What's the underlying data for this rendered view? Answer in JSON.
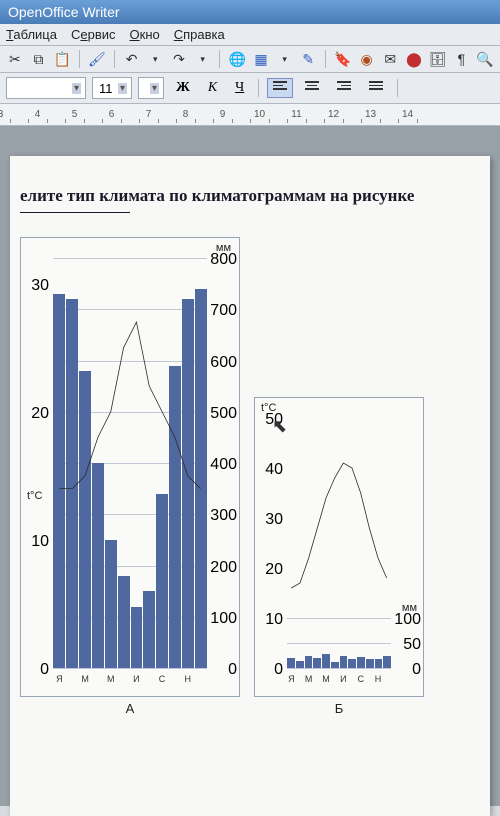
{
  "title": "OpenOffice Writer",
  "menu": [
    "Таблица",
    "Сервис",
    "Окно",
    "Справка"
  ],
  "menu_underline_idx": [
    0,
    0,
    0,
    0
  ],
  "font_size": "11",
  "fmt": {
    "bold": "Ж",
    "italic": "К",
    "underline": "Ч"
  },
  "ruler": [
    "3",
    "4",
    "5",
    "6",
    "7",
    "8",
    "9",
    "10",
    "11",
    "12",
    "13",
    "14"
  ],
  "doc_title": "елите тип климата по климатограммам на рисунке",
  "chart_a": {
    "left_title": "t°C",
    "right_title": "мм",
    "label": "А",
    "left_ticks": [
      0,
      10,
      20,
      30
    ],
    "right_ticks": [
      0,
      100,
      200,
      300,
      400,
      500,
      600,
      700,
      800
    ],
    "bars_mm": [
      730,
      720,
      580,
      400,
      250,
      180,
      120,
      150,
      340,
      590,
      720,
      740
    ],
    "temp_c": [
      14,
      14,
      15,
      18,
      20,
      25,
      27,
      22,
      20,
      18,
      15,
      14
    ],
    "months": [
      "Я",
      "",
      "М",
      "",
      "М",
      "",
      "И",
      "",
      "С",
      "",
      "Н",
      ""
    ],
    "ylim_left": [
      0,
      32
    ],
    "ylim_right": [
      0,
      800
    ],
    "bar_color": "#5068a0",
    "grid_color": "#c0c8d4",
    "bg": "#fafaf8"
  },
  "chart_b": {
    "left_title": "t°C",
    "right_title": "мм",
    "label": "Б",
    "left_ticks": [
      0,
      10,
      20,
      30,
      40,
      50
    ],
    "right_ticks": [
      0,
      50,
      100
    ],
    "bars_mm": [
      20,
      15,
      25,
      20,
      28,
      12,
      25,
      18,
      22,
      18,
      18,
      25
    ],
    "temp_c": [
      16,
      17,
      22,
      28,
      34,
      38,
      41,
      40,
      35,
      28,
      22,
      18
    ],
    "months": [
      "Я",
      "",
      "М",
      "",
      "М",
      "",
      "И",
      "",
      "С",
      "",
      "Н",
      ""
    ],
    "ylim_left": [
      0,
      50
    ],
    "ylim_right": [
      0,
      500
    ],
    "bar_color": "#5068a0",
    "grid_color": "#c0c8d4",
    "bg": "#fafaf8"
  }
}
